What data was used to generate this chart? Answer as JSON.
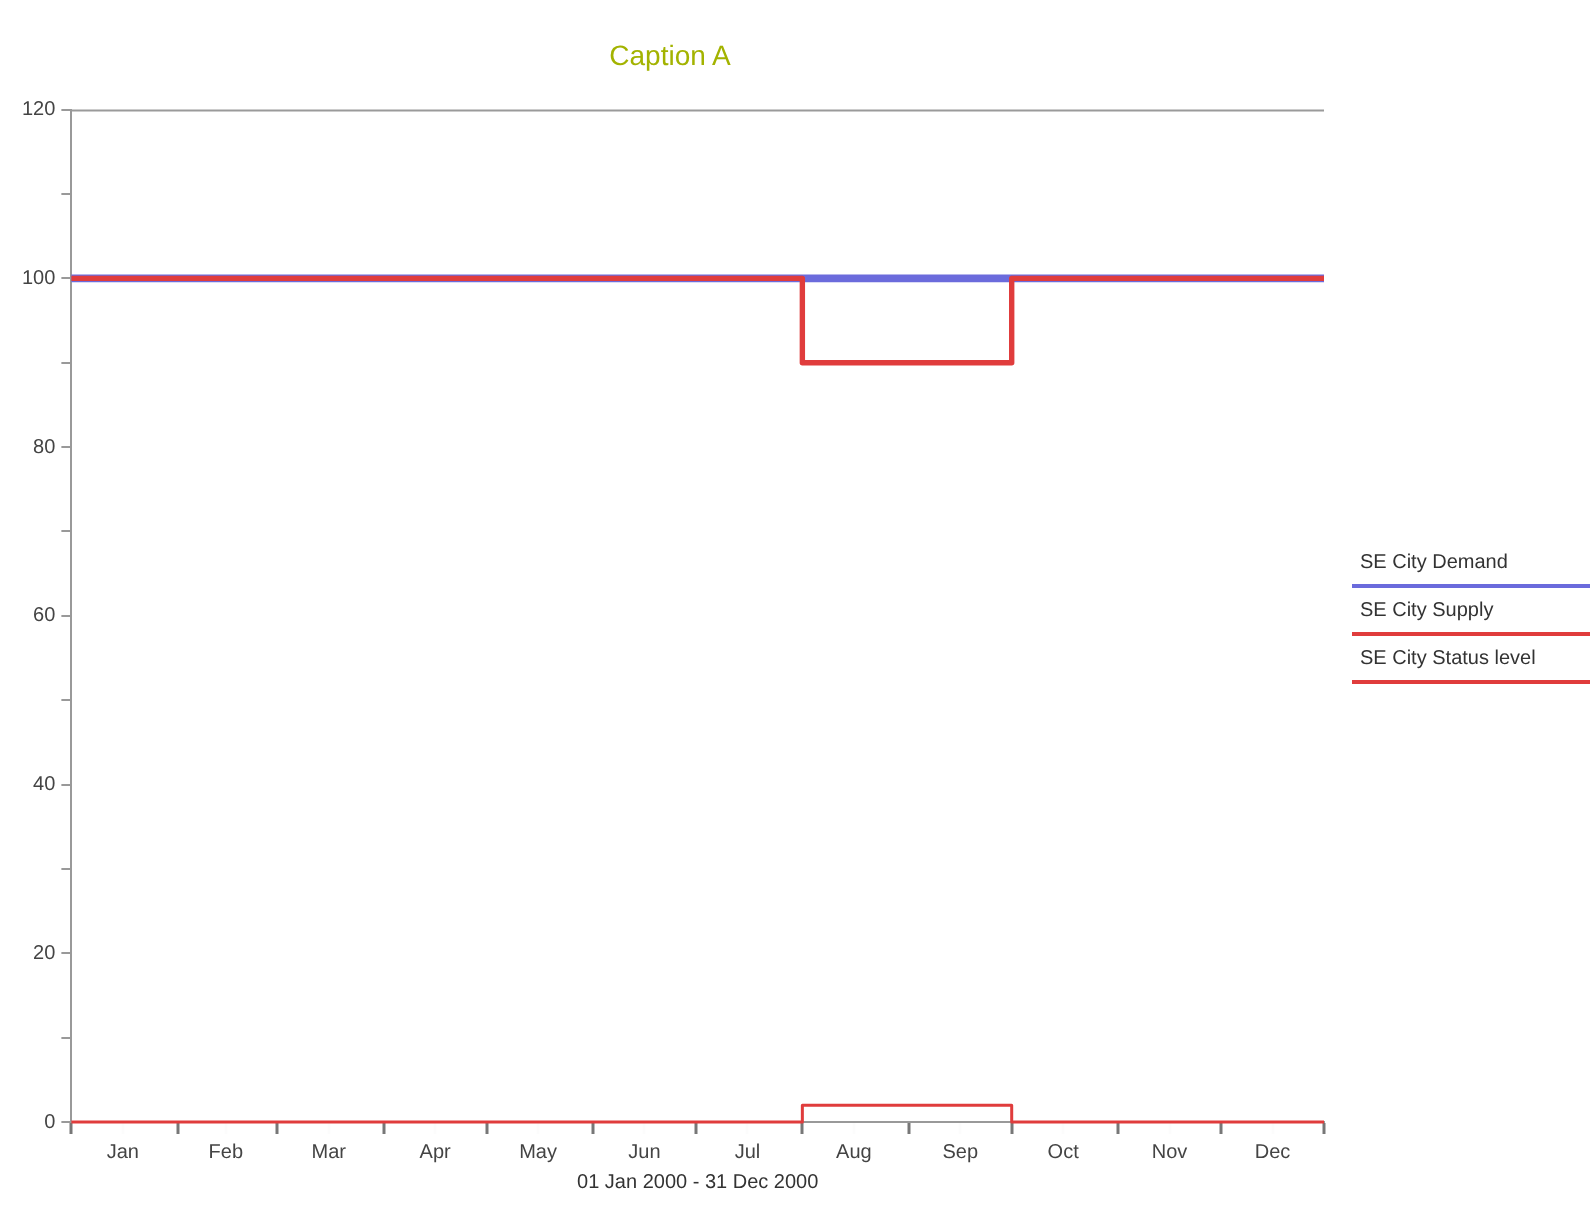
{
  "chart_data": {
    "type": "step",
    "title": "Caption A",
    "xlabel": "01 Jan 2000 - 31 Dec 2000",
    "xlim": [
      "2000-01-01",
      "2000-12-31"
    ],
    "xticks": [
      {
        "value": "2000-01-01",
        "label": null
      },
      {
        "value": "2000-01-16",
        "label": "Jan"
      },
      {
        "value": "2000-02-01",
        "label": null
      },
      {
        "value": "2000-02-15",
        "label": "Feb"
      },
      {
        "value": "2000-03-01",
        "label": null
      },
      {
        "value": "2000-03-16",
        "label": "Mar"
      },
      {
        "value": "2000-04-01",
        "label": null
      },
      {
        "value": "2000-04-16",
        "label": "Apr"
      },
      {
        "value": "2000-05-01",
        "label": null
      },
      {
        "value": "2000-05-16",
        "label": "May"
      },
      {
        "value": "2000-06-01",
        "label": null
      },
      {
        "value": "2000-06-16",
        "label": "Jun"
      },
      {
        "value": "2000-07-01",
        "label": null
      },
      {
        "value": "2000-07-16",
        "label": "Jul"
      },
      {
        "value": "2000-08-01",
        "label": null
      },
      {
        "value": "2000-08-16",
        "label": "Aug"
      },
      {
        "value": "2000-09-01",
        "label": null
      },
      {
        "value": "2000-09-16",
        "label": "Sep"
      },
      {
        "value": "2000-10-01",
        "label": null
      },
      {
        "value": "2000-10-16",
        "label": "Oct"
      },
      {
        "value": "2000-11-01",
        "label": null
      },
      {
        "value": "2000-11-16",
        "label": "Nov"
      },
      {
        "value": "2000-12-01",
        "label": null
      },
      {
        "value": "2000-12-16",
        "label": "Dec"
      },
      {
        "value": "2000-12-31",
        "label": null
      }
    ],
    "ylim": [
      0,
      120
    ],
    "yticks": [
      0,
      {
        "value": 10,
        "label": null
      },
      20,
      {
        "value": 30,
        "label": null
      },
      40,
      {
        "value": 50,
        "label": null
      },
      60,
      {
        "value": 70,
        "label": null
      },
      80,
      {
        "value": 90,
        "label": null
      },
      100,
      {
        "value": 110,
        "label": null
      },
      120
    ],
    "legend": "right",
    "grid": false,
    "marker": "none",
    "line_style": "solid",
    "series": [
      {
        "name": "SE City Demand",
        "color": "#6b6bdc",
        "x": [
          "2000-01-01",
          "2000-12-31"
        ],
        "values": [
          100,
          100
        ]
      },
      {
        "name": "SE City Supply",
        "color": "#e03c3c",
        "x": [
          "2000-01-01",
          "2000-08-01",
          "2000-10-01",
          "2000-12-31"
        ],
        "values": [
          100,
          90,
          100,
          100
        ]
      },
      {
        "name": "SE City Status level",
        "color": "#e03c3c",
        "x": [
          "2000-01-01",
          "2000-08-01",
          "2000-10-01",
          "2000-12-31"
        ],
        "values": [
          0,
          2,
          0,
          0
        ]
      }
    ]
  }
}
